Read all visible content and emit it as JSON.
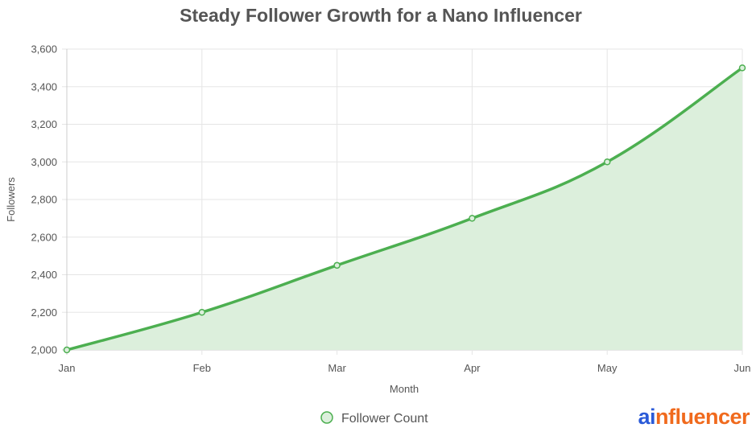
{
  "brand": {
    "logo_prefix": "ai",
    "logo_suffix": "nfluencer",
    "line_color": "#4caf50",
    "fill_color": "#dcefdc",
    "prefix_color": "#2a5ad8",
    "suffix_color": "#f06a1d"
  },
  "chart_data": {
    "type": "line",
    "title": "Steady Follower Growth for a Nano Influencer",
    "xlabel": "Month",
    "ylabel": "Followers",
    "categories": [
      "Jan",
      "Feb",
      "Mar",
      "Apr",
      "May",
      "Jun"
    ],
    "series": [
      {
        "name": "Follower Count",
        "values": [
          2000,
          2200,
          2450,
          2700,
          3000,
          3500
        ]
      }
    ],
    "ylim": [
      2000,
      3600
    ],
    "yticks": [
      2000,
      2200,
      2400,
      2600,
      2800,
      3000,
      3200,
      3400,
      3600
    ],
    "ytick_labels": [
      "2,000",
      "2,200",
      "2,400",
      "2,600",
      "2,800",
      "3,000",
      "3,200",
      "3,400",
      "3,600"
    ],
    "grid": true,
    "filled": true,
    "legend_position": "bottom"
  }
}
